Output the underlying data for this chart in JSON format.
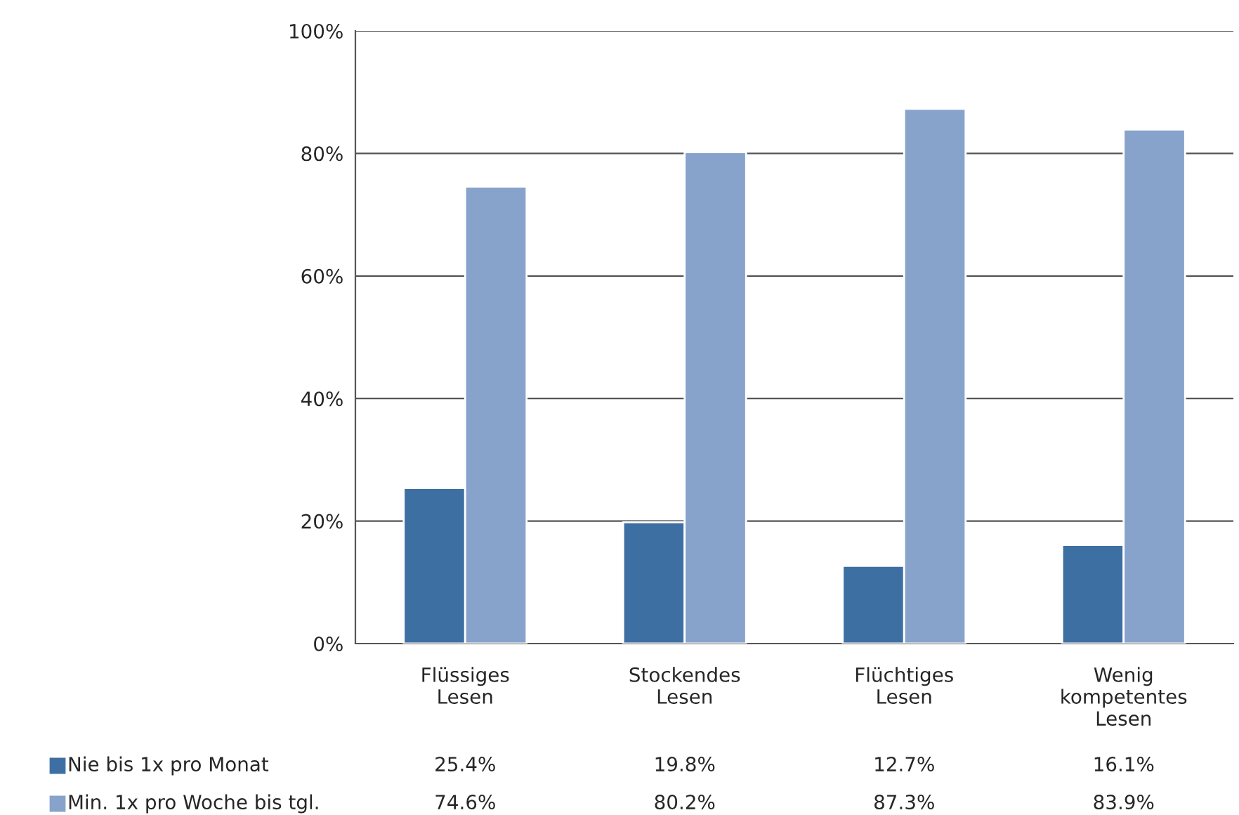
{
  "chart_data": {
    "type": "bar",
    "categories": [
      "Flüssiges\nLesen",
      "Stockendes\nLesen",
      "Flüchtiges\nLesen",
      "Wenig\nkompetentes\nLesen"
    ],
    "series": [
      {
        "name": "Nie bis 1x pro Monat",
        "color": "#3e6fa3",
        "values": [
          25.4,
          19.8,
          12.7,
          16.1
        ],
        "value_labels": [
          "25.4%",
          "19.8%",
          "12.7%",
          "16.1%"
        ]
      },
      {
        "name": "Min. 1x pro Woche bis tgl.",
        "color": "#87a3cb",
        "values": [
          74.6,
          80.2,
          87.3,
          83.9
        ],
        "value_labels": [
          "74.6%",
          "80.2%",
          "87.3%",
          "83.9%"
        ]
      }
    ],
    "ylim": [
      0,
      100
    ],
    "yticks": [
      {
        "value": 0,
        "label": "0%"
      },
      {
        "value": 20,
        "label": "20%"
      },
      {
        "value": 40,
        "label": "40%"
      },
      {
        "value": 60,
        "label": "60%"
      },
      {
        "value": 80,
        "label": "80%"
      },
      {
        "value": 100,
        "label": "100%"
      }
    ],
    "grid": "y",
    "legend": "bottom"
  }
}
